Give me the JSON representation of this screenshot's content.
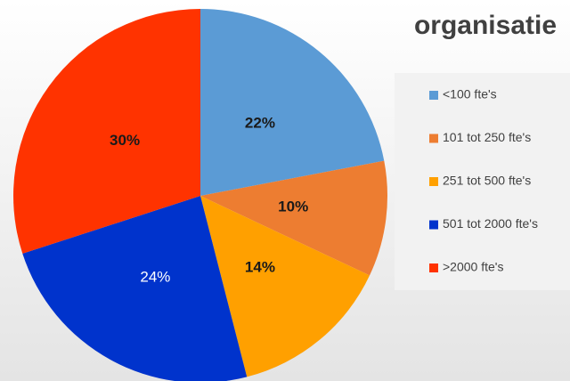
{
  "chart_data": {
    "type": "pie",
    "title": "organisatie",
    "categories": [
      "<100 fte's",
      "101 tot 250 fte's",
      "251 tot 500 fte's",
      "501 tot 2000 fte's",
      ">2000 fte's"
    ],
    "values": [
      22,
      10,
      14,
      24,
      30
    ],
    "value_labels": [
      "22%",
      "10%",
      "14%",
      "24%",
      "30%"
    ],
    "colors": [
      "#5b9bd5",
      "#ed7d31",
      "#ffa000",
      "#0033cc",
      "#ff3300"
    ],
    "label_colors": [
      "#1a1a1a",
      "#1a1a1a",
      "#1a1a1a",
      "#ffffff",
      "#1a1a1a"
    ],
    "legend": "right"
  }
}
